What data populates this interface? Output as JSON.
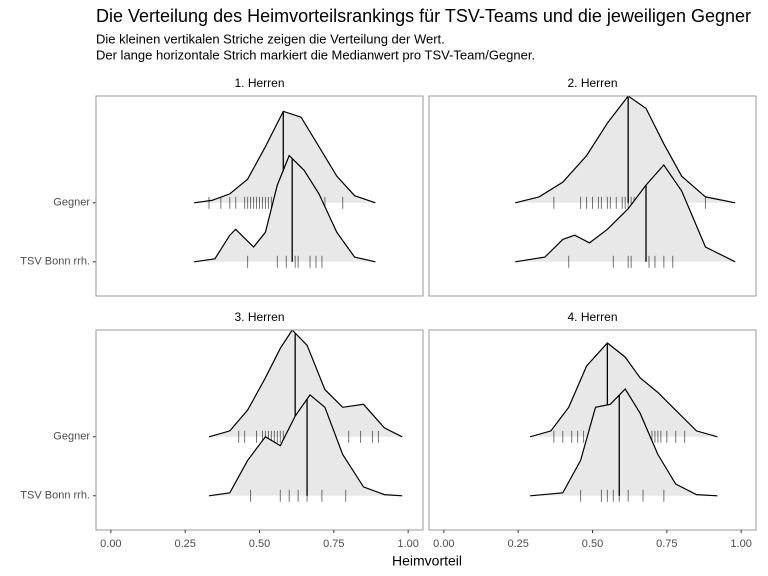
{
  "chart_data": {
    "type": "ridgeline",
    "title": "Die Verteilung des Heimvorteilsrankings für TSV-Teams und die jeweiligen Gegner",
    "subtitle": [
      "Die kleinen vertikalen Striche zeigen die Verteilung der Wert.",
      "Der lange horizontale Strich markiert die Medianwert pro TSV-Team/Gegner."
    ],
    "xlabel": "Heimvorteil",
    "categories": [
      "TSV Bonn rrh.",
      "Gegner"
    ],
    "xlim": [
      -0.05,
      1.05
    ],
    "ylim": [
      0.42,
      3.81
    ],
    "xticks": [
      {
        "value": 0,
        "label": "0.00"
      },
      {
        "value": 0.25,
        "label": "0.25"
      },
      {
        "value": 0.5,
        "label": "0.50"
      },
      {
        "value": 0.75,
        "label": "0.75"
      },
      {
        "value": 1,
        "label": "1.00"
      }
    ],
    "fill": "#e8e8e8",
    "facets": [
      {
        "title": "1. Herren",
        "groups": [
          {
            "median": 0.61,
            "rug": [
              0.46,
              0.56,
              0.59,
              0.62,
              0.63,
              0.67,
              0.69,
              0.71
            ],
            "density": {
              "x": [
                0.28,
                0.35,
                0.4,
                0.42,
                0.45,
                0.48,
                0.52,
                0.56,
                0.6,
                0.65,
                0.7,
                0.76,
                0.82,
                0.89
              ],
              "y": [
                0,
                0.05,
                0.45,
                0.55,
                0.4,
                0.25,
                0.5,
                1.3,
                1.8,
                1.55,
                1.15,
                0.5,
                0.08,
                0
              ]
            }
          },
          {
            "median": 0.58,
            "rug": [
              0.33,
              0.37,
              0.4,
              0.42,
              0.45,
              0.46,
              0.47,
              0.48,
              0.49,
              0.5,
              0.51,
              0.52,
              0.53,
              0.54,
              0.55,
              0.56,
              0.57,
              0.58,
              0.59,
              0.6,
              0.62,
              0.63,
              0.64,
              0.66,
              0.68,
              0.7,
              0.72,
              0.78
            ],
            "density": {
              "x": [
                0.28,
                0.34,
                0.4,
                0.46,
                0.52,
                0.58,
                0.64,
                0.7,
                0.76,
                0.82,
                0.89
              ],
              "y": [
                0,
                0.04,
                0.15,
                0.4,
                0.95,
                1.55,
                1.45,
                0.95,
                0.45,
                0.12,
                0
              ]
            }
          }
        ]
      },
      {
        "title": "2. Herren",
        "groups": [
          {
            "median": 0.68,
            "rug": [
              0.42,
              0.57,
              0.62,
              0.63,
              0.69,
              0.71,
              0.74,
              0.77
            ],
            "density": {
              "x": [
                0.24,
                0.34,
                0.4,
                0.44,
                0.49,
                0.55,
                0.62,
                0.68,
                0.74,
                0.8,
                0.88,
                0.98
              ],
              "y": [
                0,
                0.08,
                0.38,
                0.45,
                0.32,
                0.55,
                0.9,
                1.3,
                1.64,
                1.2,
                0.25,
                0
              ]
            }
          },
          {
            "median": 0.62,
            "rug": [
              0.37,
              0.46,
              0.48,
              0.5,
              0.52,
              0.53,
              0.55,
              0.56,
              0.58,
              0.6,
              0.61,
              0.62,
              0.63,
              0.64,
              0.65,
              0.66,
              0.68,
              0.7,
              0.72,
              0.74,
              0.76,
              0.78,
              0.8,
              0.88
            ],
            "density": {
              "x": [
                0.24,
                0.32,
                0.4,
                0.48,
                0.55,
                0.62,
                0.68,
                0.74,
                0.8,
                0.88,
                0.98
              ],
              "y": [
                0,
                0.1,
                0.35,
                0.8,
                1.35,
                1.81,
                1.6,
                1.0,
                0.45,
                0.1,
                0
              ]
            }
          }
        ]
      },
      {
        "title": "3. Herren",
        "groups": [
          {
            "median": 0.66,
            "rug": [
              0.47,
              0.57,
              0.6,
              0.63,
              0.66,
              0.71,
              0.79
            ],
            "density": {
              "x": [
                0.33,
                0.4,
                0.46,
                0.52,
                0.57,
                0.62,
                0.67,
                0.72,
                0.78,
                0.85,
                0.92,
                0.98
              ],
              "y": [
                0,
                0.05,
                0.6,
                1.0,
                0.85,
                1.35,
                1.71,
                1.5,
                0.7,
                0.15,
                0.02,
                0
              ]
            }
          },
          {
            "median": 0.62,
            "rug": [
              0.43,
              0.45,
              0.49,
              0.51,
              0.52,
              0.53,
              0.54,
              0.55,
              0.56,
              0.57,
              0.58,
              0.6,
              0.62,
              0.64,
              0.66,
              0.68,
              0.7,
              0.72,
              0.75,
              0.8,
              0.84,
              0.88,
              0.9
            ],
            "density": {
              "x": [
                0.33,
                0.4,
                0.46,
                0.52,
                0.57,
                0.61,
                0.66,
                0.72,
                0.78,
                0.85,
                0.92,
                0.98
              ],
              "y": [
                0,
                0.1,
                0.45,
                1.0,
                1.5,
                1.81,
                1.55,
                0.8,
                0.5,
                0.55,
                0.15,
                0
              ]
            }
          }
        ]
      },
      {
        "title": "4. Herren",
        "groups": [
          {
            "median": 0.59,
            "rug": [
              0.46,
              0.53,
              0.55,
              0.57,
              0.59,
              0.62,
              0.67,
              0.74
            ],
            "density": {
              "x": [
                0.29,
                0.4,
                0.46,
                0.51,
                0.56,
                0.61,
                0.66,
                0.72,
                0.78,
                0.85,
                0.92
              ],
              "y": [
                0,
                0.05,
                0.6,
                1.5,
                1.55,
                1.81,
                1.4,
                0.7,
                0.2,
                0.02,
                0
              ]
            }
          },
          {
            "median": 0.55,
            "rug": [
              0.37,
              0.4,
              0.43,
              0.45,
              0.47,
              0.49,
              0.5,
              0.52,
              0.53,
              0.54,
              0.56,
              0.58,
              0.6,
              0.63,
              0.65,
              0.7,
              0.71,
              0.72,
              0.73,
              0.75,
              0.78,
              0.81
            ],
            "density": {
              "x": [
                0.29,
                0.36,
                0.42,
                0.48,
                0.55,
                0.61,
                0.66,
                0.72,
                0.78,
                0.85,
                0.92
              ],
              "y": [
                0,
                0.1,
                0.5,
                1.2,
                1.59,
                1.35,
                1.0,
                0.75,
                0.45,
                0.1,
                0
              ]
            }
          }
        ]
      }
    ]
  }
}
